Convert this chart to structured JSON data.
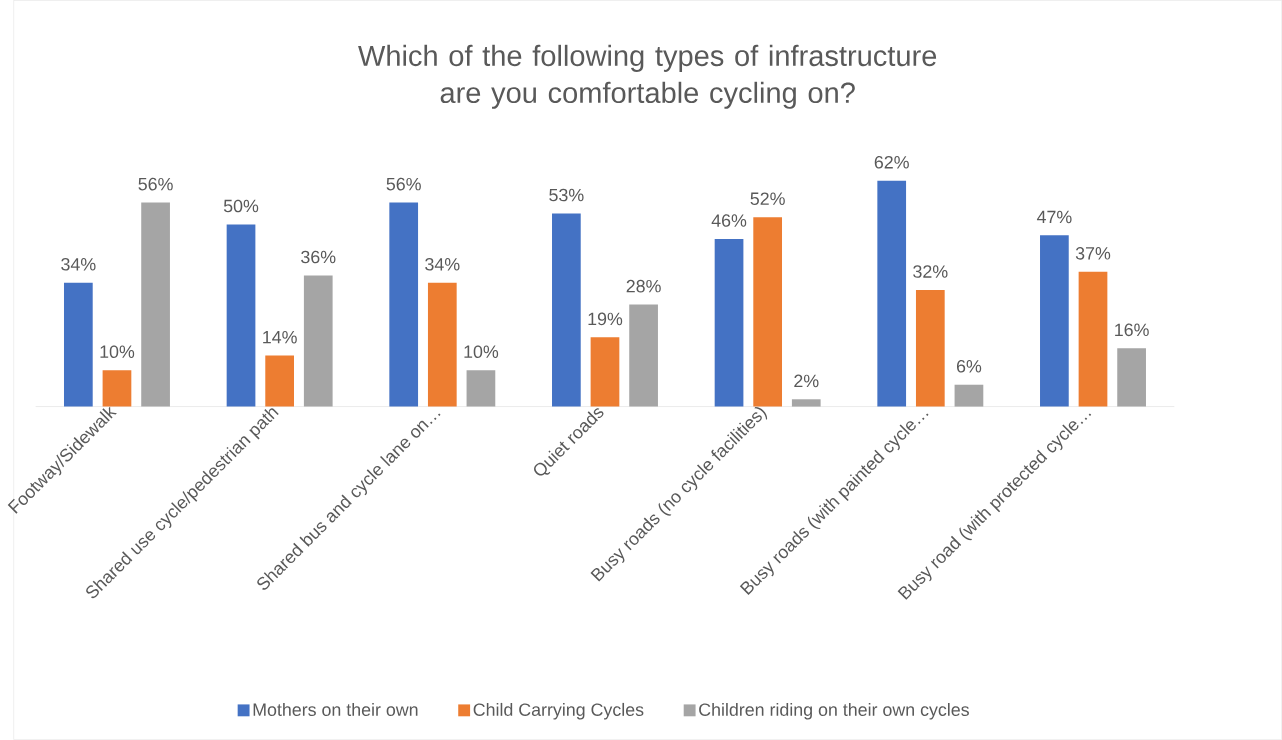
{
  "chart_data": {
    "type": "bar",
    "title": "Which of the following types of infrastructure are you comfortable cycling on?",
    "categories": [
      "Footway/Sidewalk",
      "Shared use cycle/pedestrian path",
      "Shared bus and cycle lane on…",
      "Quiet roads",
      "Busy roads (no cycle facilities)",
      "Busy roads (with painted cycle…",
      "Busy road (with protected cycle…"
    ],
    "series": [
      {
        "name": "Mothers on their own",
        "color": "#4472c4",
        "values": [
          34,
          50,
          56,
          53,
          46,
          62,
          47
        ],
        "value_labels": [
          "34%",
          "50%",
          "56%",
          "53%",
          "46%",
          "62%",
          "47%"
        ]
      },
      {
        "name": "Child Carrying Cycles",
        "color": "#ed7d31",
        "values": [
          10,
          14,
          34,
          19,
          52,
          32,
          37
        ],
        "value_labels": [
          "10%",
          "14%",
          "34%",
          "19%",
          "52%",
          "32%",
          "37%"
        ]
      },
      {
        "name": "Children riding on their own cycles",
        "color": "#a5a5a5",
        "values": [
          56,
          36,
          10,
          28,
          2,
          6,
          16
        ],
        "value_labels": [
          "56%",
          "36%",
          "10%",
          "28%",
          "2%",
          "6%",
          "16%"
        ]
      }
    ],
    "legend": "bottom"
  }
}
